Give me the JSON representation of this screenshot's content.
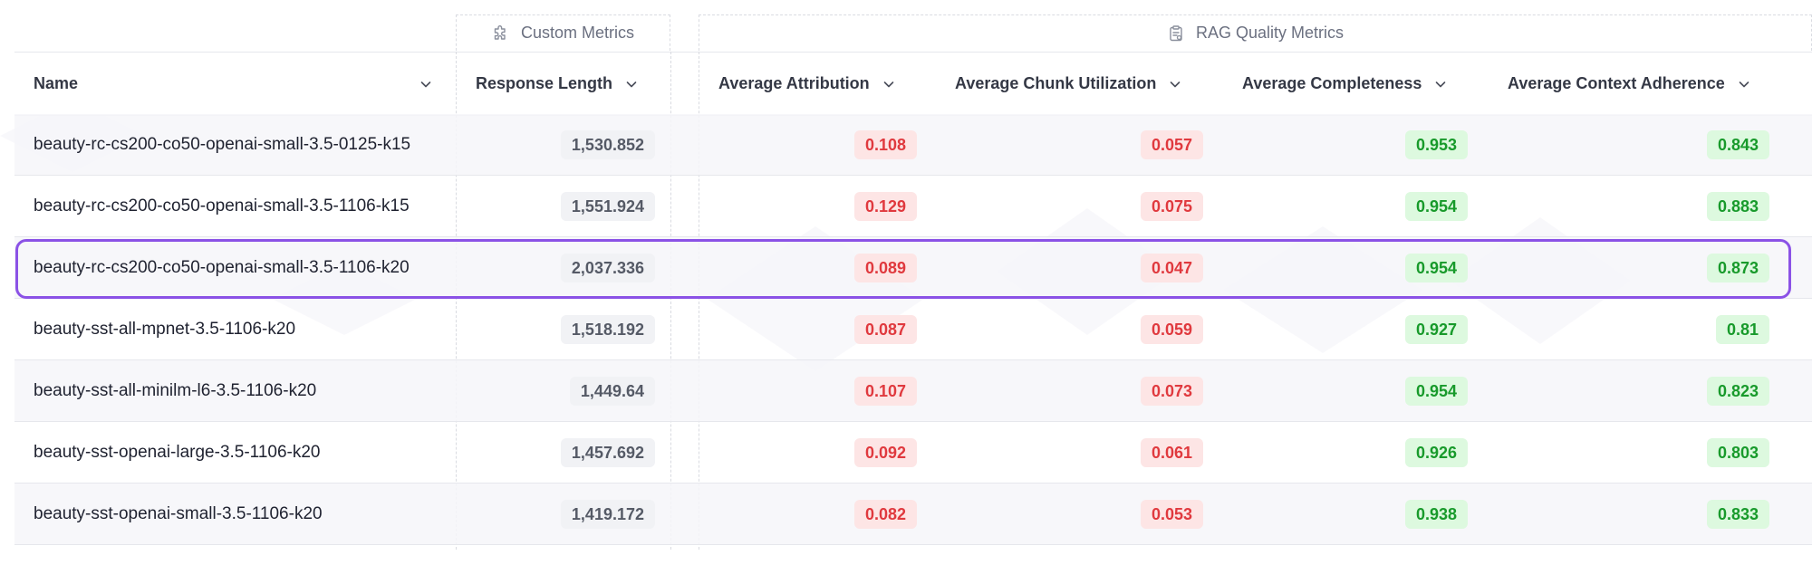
{
  "column_groups": [
    {
      "label": "Custom Metrics",
      "icon": "puzzle-icon"
    },
    {
      "label": "RAG Quality Metrics",
      "icon": "clipboard-icon"
    }
  ],
  "columns": [
    {
      "label": "Name"
    },
    {
      "label": "Response Length"
    },
    {
      "label": "Average Attribution"
    },
    {
      "label": "Average Chunk Utilization"
    },
    {
      "label": "Average Completeness"
    },
    {
      "label": "Average Context Adherence"
    }
  ],
  "rows": [
    {
      "name": "beauty-rc-cs200-co50-openai-small-3.5-0125-k15",
      "response_length": "1,530.852",
      "attribution": "0.108",
      "chunk_utilization": "0.057",
      "completeness": "0.953",
      "context_adherence": "0.843"
    },
    {
      "name": "beauty-rc-cs200-co50-openai-small-3.5-1106-k15",
      "response_length": "1,551.924",
      "attribution": "0.129",
      "chunk_utilization": "0.075",
      "completeness": "0.954",
      "context_adherence": "0.883"
    },
    {
      "name": "beauty-rc-cs200-co50-openai-small-3.5-1106-k20",
      "response_length": "2,037.336",
      "attribution": "0.089",
      "chunk_utilization": "0.047",
      "completeness": "0.954",
      "context_adherence": "0.873",
      "highlighted": true
    },
    {
      "name": "beauty-sst-all-mpnet-3.5-1106-k20",
      "response_length": "1,518.192",
      "attribution": "0.087",
      "chunk_utilization": "0.059",
      "completeness": "0.927",
      "context_adherence": "0.81"
    },
    {
      "name": "beauty-sst-all-minilm-l6-3.5-1106-k20",
      "response_length": "1,449.64",
      "attribution": "0.107",
      "chunk_utilization": "0.073",
      "completeness": "0.954",
      "context_adherence": "0.823"
    },
    {
      "name": "beauty-sst-openai-large-3.5-1106-k20",
      "response_length": "1,457.692",
      "attribution": "0.092",
      "chunk_utilization": "0.061",
      "completeness": "0.926",
      "context_adherence": "0.803"
    },
    {
      "name": "beauty-sst-openai-small-3.5-1106-k20",
      "response_length": "1,419.172",
      "attribution": "0.082",
      "chunk_utilization": "0.053",
      "completeness": "0.938",
      "context_adherence": "0.833"
    }
  ],
  "colors": {
    "highlight_border": "#8b52e6",
    "bad_bg": "#fde5e5",
    "bad_text": "#e0393e",
    "good_bg": "#ddf9df",
    "good_text": "#189a2b",
    "neutral_bg": "#f1f2f5",
    "neutral_text": "#555a66"
  }
}
